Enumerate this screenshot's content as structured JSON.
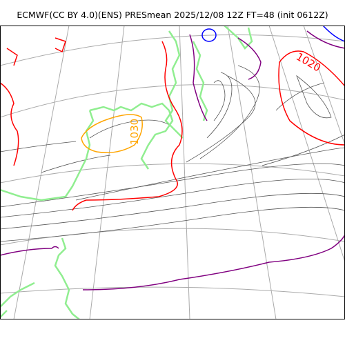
{
  "title": "ECMWF(CC BY 4.0)(ENS) PRESmean 2025/12/08 12Z FT=48 (init 0612Z)",
  "labels": {
    "isobar_high": "1030",
    "isobar_mid": "1020"
  },
  "colors": {
    "coast": "#90ee90",
    "isobar_thin": "#555555",
    "isobar_1020": "#ff0000",
    "isobar_1030": "#ffa500",
    "isobar_1010": "#800080",
    "isobar_1000": "#0000ff",
    "graticule": "#aaaaaa",
    "frame": "#000000"
  }
}
